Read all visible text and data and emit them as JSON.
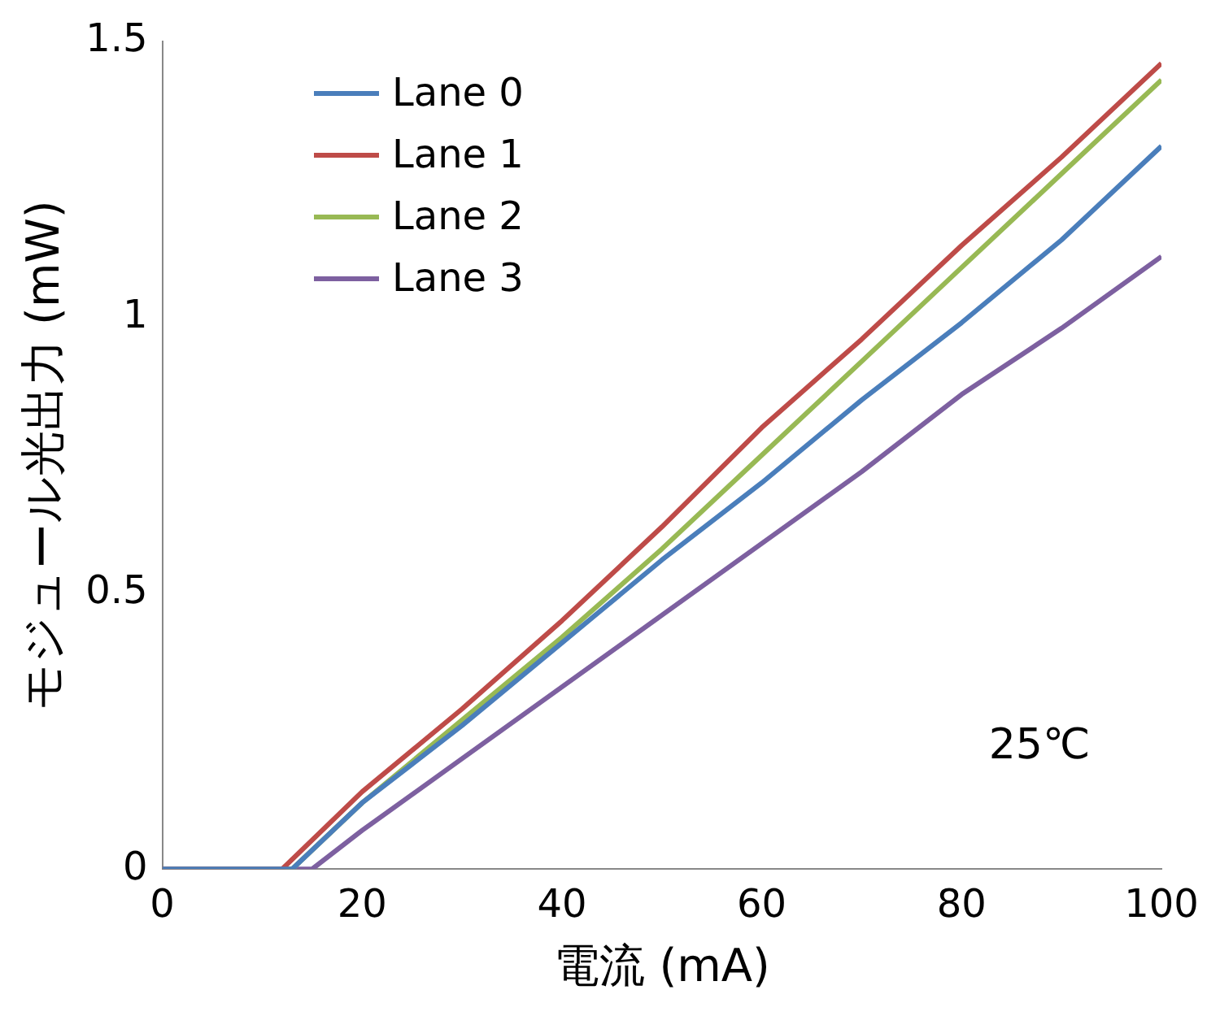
{
  "chart_data": {
    "type": "line",
    "xlabel": "電流 (mA)",
    "ylabel": "モジュール光出力 (mW)",
    "xlim": [
      0,
      100
    ],
    "xticks": [
      0,
      20,
      40,
      60,
      80,
      100
    ],
    "ylim": [
      0,
      1.5
    ],
    "yticks": [
      0,
      0.5,
      1,
      1.5
    ],
    "grid": false,
    "legend": "top left",
    "marker": "none",
    "line_style": "solid",
    "annotations": [
      "25℃"
    ],
    "x": [
      0,
      13,
      20,
      30,
      40,
      50,
      60,
      70,
      80,
      90,
      100
    ],
    "series": [
      {
        "name": "Lane 0",
        "color": "#4a7ebb",
        "values": [
          0,
          0,
          0.12,
          0.26,
          0.41,
          0.56,
          0.7,
          0.85,
          0.99,
          1.14,
          1.31
        ]
      },
      {
        "name": "Lane 1",
        "color": "#be4b48",
        "x": [
          0,
          12,
          20,
          30,
          40,
          50,
          60,
          70,
          80,
          90,
          100
        ],
        "values": [
          0,
          0,
          0.14,
          0.29,
          0.45,
          0.62,
          0.8,
          0.96,
          1.13,
          1.29,
          1.46
        ]
      },
      {
        "name": "Lane 2",
        "color": "#98b954",
        "values": [
          0,
          0,
          0.12,
          0.27,
          0.42,
          0.58,
          0.75,
          0.92,
          1.09,
          1.26,
          1.43
        ]
      },
      {
        "name": "Lane 3",
        "color": "#7d60a0",
        "x": [
          0,
          15,
          20,
          30,
          40,
          50,
          60,
          70,
          80,
          90,
          100
        ],
        "values": [
          0,
          0,
          0.07,
          0.2,
          0.33,
          0.46,
          0.59,
          0.72,
          0.86,
          0.98,
          1.11
        ]
      }
    ]
  }
}
